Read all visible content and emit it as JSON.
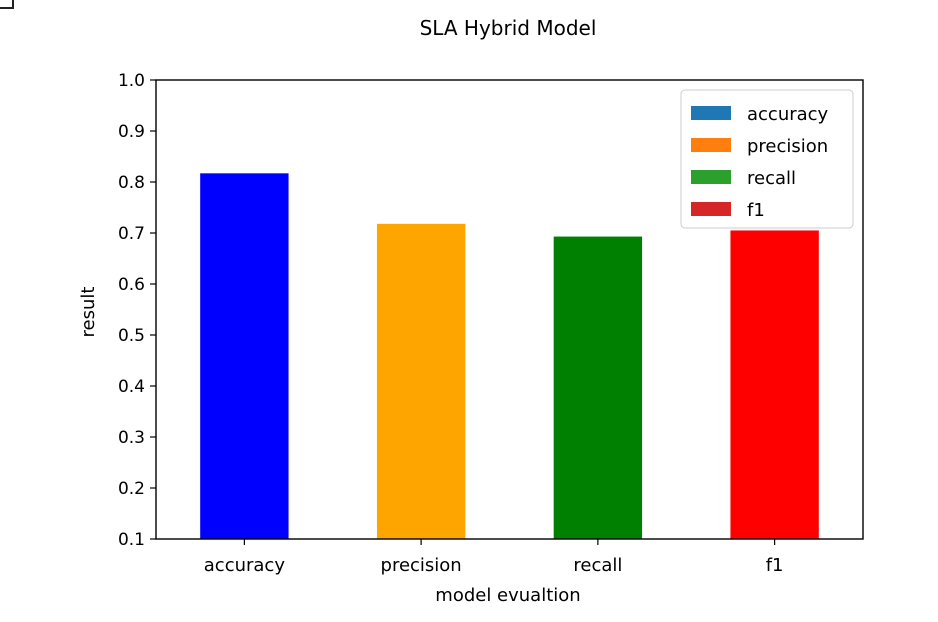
{
  "chart_data": {
    "type": "bar",
    "title": "SLA Hybrid Model",
    "xlabel": "model evualtion",
    "ylabel": "result",
    "categories": [
      "accuracy",
      "precision",
      "recall",
      "f1"
    ],
    "values": [
      0.817,
      0.718,
      0.693,
      0.705
    ],
    "bar_colors": [
      "#0000ff",
      "#ffa500",
      "#008000",
      "#ff0000"
    ],
    "ylim": [
      0.1,
      1.0
    ],
    "yticks": [
      "0.1",
      "0.2",
      "0.3",
      "0.4",
      "0.5",
      "0.6",
      "0.7",
      "0.8",
      "0.9",
      "1.0"
    ],
    "grid": false,
    "legend": {
      "placement": "top-right",
      "entries": [
        {
          "label": "accuracy",
          "color": "#1f77b4"
        },
        {
          "label": "precision",
          "color": "#ff7f0e"
        },
        {
          "label": "recall",
          "color": "#2ca02c"
        },
        {
          "label": "f1",
          "color": "#d62728"
        }
      ]
    }
  }
}
